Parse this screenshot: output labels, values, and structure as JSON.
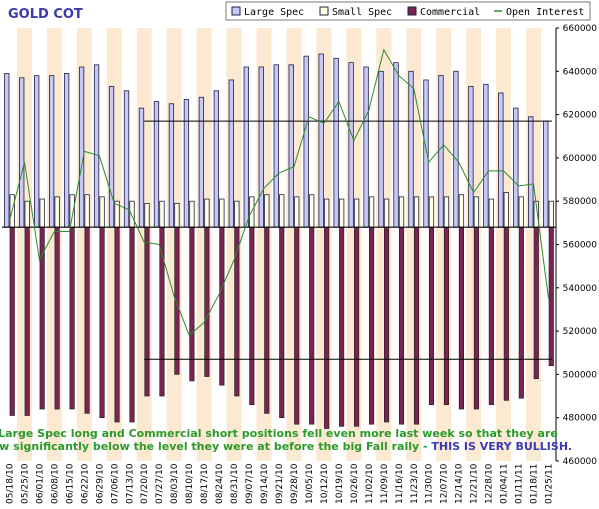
{
  "chart_data": {
    "type": "bar",
    "title": "GOLD COT",
    "grid": "vertical alternating shaded bands",
    "legend_position": "top-right",
    "colors": {
      "large_spec": "#c8c8f8",
      "small_spec": "#ffffe8",
      "commercial": "#7a2452",
      "open_interest": "#2f8a2f",
      "band": "#fbe9d2",
      "annotation_green": "#2a9a2a",
      "annotation_blue": "#3a3ab8"
    },
    "legend": [
      {
        "key": "large_spec",
        "label": "Large Spec"
      },
      {
        "key": "small_spec",
        "label": "Small Spec"
      },
      {
        "key": "commercial",
        "label": "Commercial"
      },
      {
        "key": "open_interest",
        "label": "Open Interest"
      }
    ],
    "categories": [
      "05/18/10",
      "05/25/10",
      "06/01/10",
      "06/08/10",
      "06/15/10",
      "06/22/10",
      "06/29/10",
      "07/06/10",
      "07/13/10",
      "07/20/10",
      "07/27/10",
      "08/03/10",
      "08/10/10",
      "08/17/10",
      "08/24/10",
      "08/31/10",
      "09/07/10",
      "09/14/10",
      "09/21/10",
      "09/28/10",
      "10/05/10",
      "10/12/10",
      "10/19/10",
      "10/26/10",
      "11/02/10",
      "11/09/10",
      "11/16/10",
      "11/23/10",
      "11/30/10",
      "12/07/10",
      "12/14/10",
      "12/21/10",
      "12/28/10",
      "01/04/11",
      "01/11/11",
      "01/18/11",
      "01/25/11"
    ],
    "ylim": [
      460000,
      660000
    ],
    "yticks": [
      460000,
      480000,
      500000,
      520000,
      540000,
      560000,
      580000,
      600000,
      620000,
      640000,
      660000
    ],
    "baseline": 568000,
    "series": [
      {
        "name": "Large Spec",
        "key": "large_spec",
        "values": [
          639000,
          637000,
          638000,
          638000,
          639000,
          642000,
          643000,
          633000,
          631000,
          623000,
          626000,
          625000,
          627000,
          628000,
          631000,
          636000,
          642000,
          642000,
          643000,
          643000,
          647000,
          648000,
          646000,
          644000,
          642000,
          640000,
          644000,
          640000,
          636000,
          638000,
          640000,
          633000,
          634000,
          630000,
          623000,
          619000,
          617000
        ]
      },
      {
        "name": "Small Spec",
        "key": "small_spec",
        "values": [
          583000,
          580000,
          581000,
          582000,
          583000,
          583000,
          582000,
          580000,
          580000,
          579000,
          580000,
          579000,
          580000,
          581000,
          581000,
          580000,
          582000,
          583000,
          583000,
          582000,
          583000,
          581000,
          581000,
          581000,
          582000,
          581000,
          582000,
          582000,
          582000,
          582000,
          583000,
          582000,
          581000,
          584000,
          582000,
          580000,
          580000
        ]
      },
      {
        "name": "Commercial",
        "key": "commercial",
        "values": [
          481000,
          481000,
          484000,
          484000,
          484000,
          482000,
          480000,
          478000,
          478000,
          490000,
          490000,
          500000,
          497000,
          499000,
          495000,
          490000,
          486000,
          482000,
          480000,
          477000,
          477000,
          475000,
          476000,
          476000,
          477000,
          478000,
          477000,
          477000,
          486000,
          486000,
          484000,
          484000,
          486000,
          488000,
          489000,
          498000,
          504000
        ]
      },
      {
        "name": "Open Interest",
        "key": "open_interest",
        "values": [
          571000,
          598000,
          553000,
          566000,
          566000,
          603000,
          601000,
          579000,
          576000,
          561000,
          560000,
          536000,
          518000,
          524000,
          537000,
          553000,
          573000,
          586000,
          593000,
          596000,
          619000,
          616000,
          626000,
          608000,
          622000,
          650000,
          638000,
          632000,
          598000,
          606000,
          598000,
          584000,
          594000,
          594000,
          587000,
          588000,
          535000
        ]
      }
    ],
    "reference_lines": [
      {
        "series": "large_spec",
        "value": 617000
      },
      {
        "series": "commercial",
        "value": 507000
      }
    ],
    "annotation": {
      "line1": "Large Spec long and Commercial short positions fell even more last week so that they are",
      "line2_main": "now significantly below the level they were at before the big Fall rally - ",
      "line2_emph": "THIS IS VERY BULLISH."
    }
  }
}
